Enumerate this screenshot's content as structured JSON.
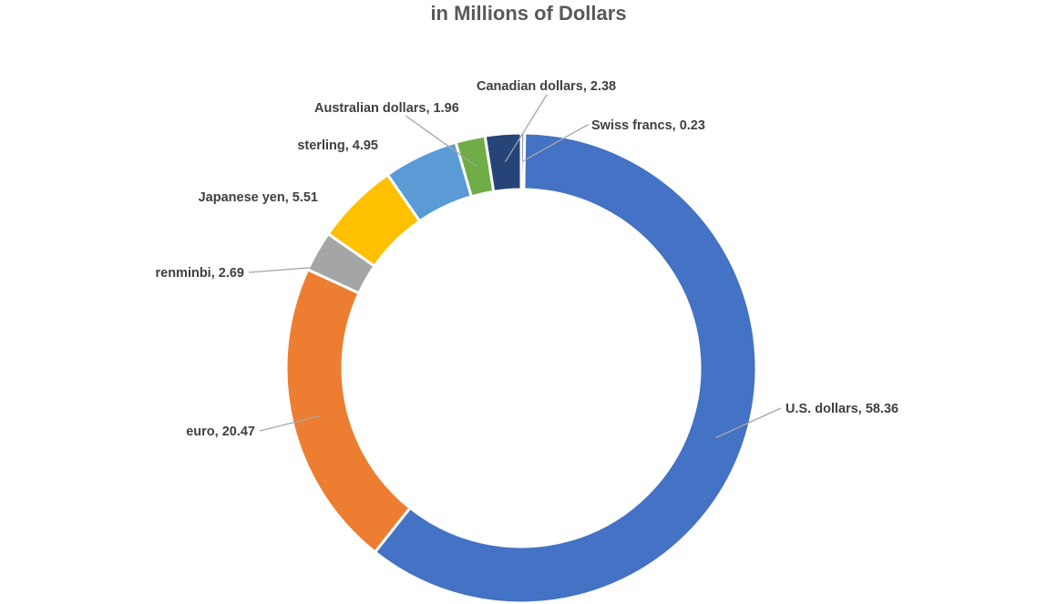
{
  "chart_data": {
    "type": "pie",
    "title": "in Millions of Dollars",
    "slices": [
      {
        "label": "Swiss francs",
        "display": "Swiss francs, 0.23",
        "value": 0.23,
        "color": "#264478"
      },
      {
        "label": "U.S. dollars",
        "display": "U.S. dollars, 58.36",
        "value": 58.36,
        "color": "#4472C4"
      },
      {
        "label": "euro",
        "display": "euro, 20.47",
        "value": 20.47,
        "color": "#ED7D31"
      },
      {
        "label": "renminbi",
        "display": "renminbi, 2.69",
        "value": 2.69,
        "color": "#A5A5A5"
      },
      {
        "label": "Japanese yen",
        "display": "Japanese yen, 5.51",
        "value": 5.51,
        "color": "#FFC000"
      },
      {
        "label": "sterling",
        "display": "sterling, 4.95",
        "value": 4.95,
        "color": "#5B9BD5"
      },
      {
        "label": "Australian dollars",
        "display": "Australian dollars, 1.96",
        "value": 1.96,
        "color": "#70AD47"
      },
      {
        "label": "Canadian dollars",
        "display": "Canadian dollars, 2.38",
        "value": 2.38,
        "color": "#264478"
      }
    ],
    "legend": "none",
    "data_labels": "outside-with-leader-lines"
  }
}
